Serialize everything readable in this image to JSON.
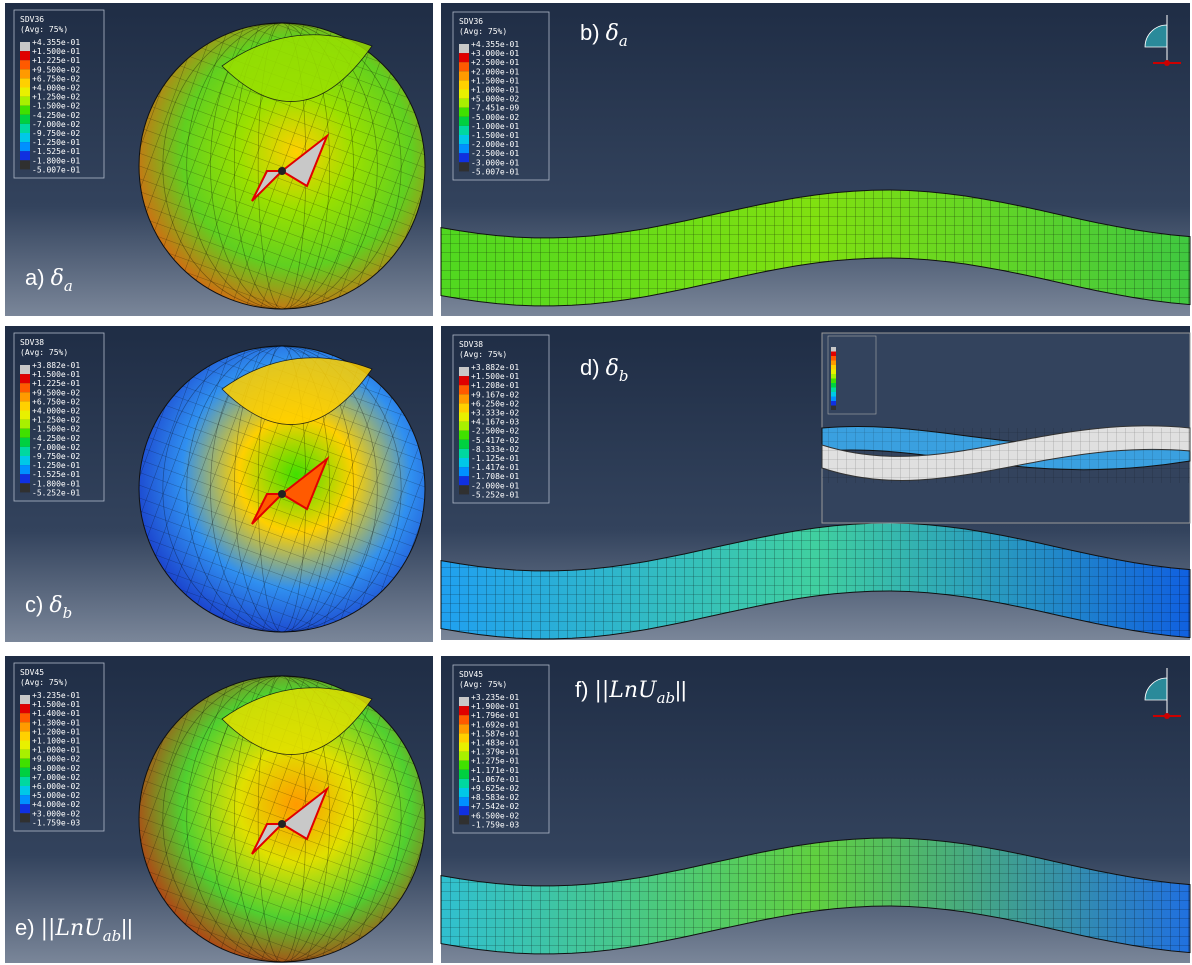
{
  "panels": [
    {
      "label": {
        "prefix": "a)",
        "symbol": "δ",
        "subscript": "a"
      },
      "legend": {
        "title": "SDV36",
        "subtitle": "(Avg: 75%)",
        "values": [
          "+4.355e-01",
          "+1.500e-01",
          "+1.225e-01",
          "+9.500e-02",
          "+6.750e-02",
          "+4.000e-02",
          "+1.250e-02",
          "-1.500e-02",
          "-4.250e-02",
          "-7.000e-02",
          "-9.750e-02",
          "-1.250e-01",
          "-1.525e-01",
          "-1.800e-01",
          "-5.007e-01"
        ]
      }
    },
    {
      "label": {
        "prefix": "b)",
        "symbol": "δ",
        "subscript": "a"
      },
      "legend": {
        "title": "SDV36",
        "subtitle": "(Avg: 75%)",
        "values": [
          "+4.355e-01",
          "+3.000e-01",
          "+2.500e-01",
          "+2.000e-01",
          "+1.500e-01",
          "+1.000e-01",
          "+5.000e-02",
          "-7.451e-09",
          "-5.000e-02",
          "-1.000e-01",
          "-1.500e-01",
          "-2.000e-01",
          "-2.500e-01",
          "-3.000e-01",
          "-5.007e-01"
        ]
      }
    },
    {
      "label": {
        "prefix": "c)",
        "symbol": "δ",
        "subscript": "b"
      },
      "legend": {
        "title": "SDV38",
        "subtitle": "(Avg: 75%)",
        "values": [
          "+3.882e-01",
          "+1.500e-01",
          "+1.225e-01",
          "+9.500e-02",
          "+6.750e-02",
          "+4.000e-02",
          "+1.250e-02",
          "-1.500e-02",
          "-4.250e-02",
          "-7.000e-02",
          "-9.750e-02",
          "-1.250e-01",
          "-1.525e-01",
          "-1.800e-01",
          "-5.252e-01"
        ]
      }
    },
    {
      "label": {
        "prefix": "d)",
        "symbol": "δ",
        "subscript": "b"
      },
      "legend": {
        "title": "SDV38",
        "subtitle": "(Avg: 75%)",
        "values": [
          "+3.882e-01",
          "+1.500e-01",
          "+1.208e-01",
          "+9.167e-02",
          "+6.250e-02",
          "+3.333e-02",
          "+4.167e-03",
          "-2.500e-02",
          "-5.417e-02",
          "-8.333e-02",
          "-1.125e-01",
          "-1.417e-01",
          "-1.708e-01",
          "-2.000e-01",
          "-5.252e-01"
        ]
      }
    },
    {
      "label": {
        "prefix": "e)",
        "symbol": "||LnU",
        "subscript": "ab",
        "suffix": "||"
      },
      "legend": {
        "title": "SDV45",
        "subtitle": "(Avg: 75%)",
        "values": [
          "+3.235e-01",
          "+1.500e-01",
          "+1.400e-01",
          "+1.300e-01",
          "+1.200e-01",
          "+1.100e-01",
          "+1.000e-01",
          "+9.000e-02",
          "+8.000e-02",
          "+7.000e-02",
          "+6.000e-02",
          "+5.000e-02",
          "+4.000e-02",
          "+3.000e-02",
          "-1.759e-03"
        ]
      }
    },
    {
      "label": {
        "prefix": "f)",
        "symbol": "||LnU",
        "subscript": "ab",
        "suffix": "||"
      },
      "legend": {
        "title": "SDV45",
        "subtitle": "(Avg: 75%)",
        "values": [
          "+3.235e-01",
          "+1.900e-01",
          "+1.796e-01",
          "+1.692e-01",
          "+1.587e-01",
          "+1.483e-01",
          "+1.379e-01",
          "+1.275e-01",
          "+1.171e-01",
          "+1.067e-01",
          "+9.625e-02",
          "+8.583e-02",
          "+7.542e-02",
          "+6.500e-02",
          "-1.759e-03"
        ]
      }
    }
  ]
}
